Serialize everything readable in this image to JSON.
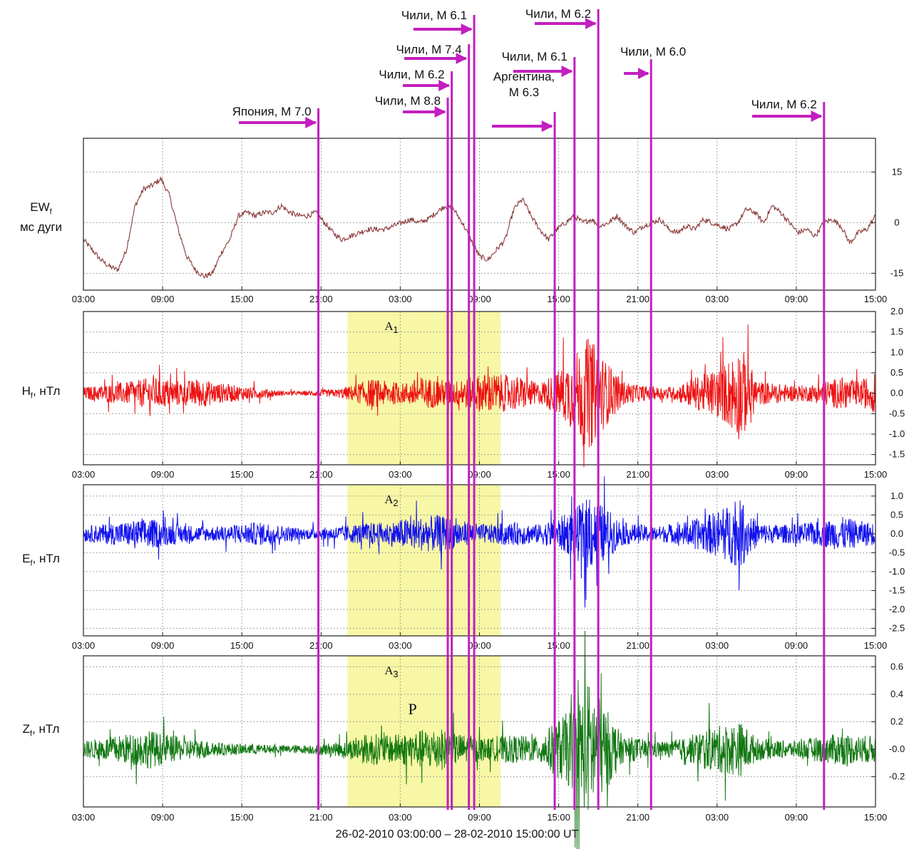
{
  "chart_data": {
    "type": "line",
    "caption": "26-02-2010 03:00:00 – 28-02-2010 15:00:00 UT",
    "x_tick_labels": [
      "03:00",
      "09:00",
      "15:00",
      "21:00",
      "03:00",
      "09:00",
      "15:00",
      "21:00",
      "03:00",
      "09:00",
      "15:00"
    ],
    "x_range_hours": [
      0,
      60
    ],
    "events": [
      {
        "label": "Япония, M 7.0",
        "t_hours": 17.8
      },
      {
        "label": "Чили, M 8.8",
        "t_hours": 27.6
      },
      {
        "label": "Чили, M 6.2",
        "t_hours": 27.9
      },
      {
        "label": "Чили, M 7.4",
        "t_hours": 29.2
      },
      {
        "label": "Чили, M 6.1",
        "t_hours": 29.6
      },
      {
        "label": "Аргентина,\nM 6.3",
        "t_hours": 35.7
      },
      {
        "label": "Чили, M 6.1",
        "t_hours": 37.2
      },
      {
        "label": "Чили, M 6.2",
        "t_hours": 39.0
      },
      {
        "label": "Чили, M 6.0",
        "t_hours": 43.0
      },
      {
        "label": "Чили, M 6.2",
        "t_hours": 56.1
      }
    ],
    "highlight_hours": [
      20,
      31.6
    ],
    "panels": [
      {
        "name": "EW",
        "sub": "f",
        "unit": "мс дуги",
        "ylim": [
          -20,
          25
        ],
        "y_ticks": [
          15,
          0,
          -15
        ],
        "y_tick_labels": [
          "15",
          "0",
          "-15"
        ],
        "region_label": "",
        "region_sub": "",
        "values": [
          -5,
          -8,
          -11,
          -13,
          -14,
          -8,
          5,
          10,
          11,
          13,
          8,
          -2,
          -10,
          -14,
          -16,
          -15,
          -9,
          -5,
          2,
          3,
          2,
          3,
          3,
          5,
          3,
          2,
          2,
          3,
          0,
          -3,
          -5,
          -4,
          -3,
          -2,
          -2,
          -2,
          -1,
          0,
          1,
          0,
          1,
          3,
          5,
          4,
          0,
          -5,
          -10,
          -11,
          -8,
          -5,
          4,
          7,
          2,
          -2,
          -5,
          -2,
          0,
          2,
          0,
          1,
          -1,
          0,
          2,
          -1,
          -3,
          -1,
          0,
          1,
          -2,
          -3,
          -1,
          -2,
          1,
          0,
          -1,
          -2,
          0,
          4,
          3,
          0,
          5,
          3,
          0,
          -3,
          -2,
          -4,
          0,
          1,
          -1,
          -6,
          -3,
          -2,
          2
        ]
      },
      {
        "name": "H",
        "sub": "f",
        "unit": ", нТл",
        "ylim": [
          -1.75,
          2.0
        ],
        "y_ticks": [
          2.0,
          1.5,
          1.0,
          0.5,
          0.0,
          -0.5,
          -1.0,
          -1.5
        ],
        "y_tick_labels": [
          "2.0",
          "1.5",
          "1.0",
          "0.5",
          "0.0",
          "-0.5",
          "-1.0",
          "-1.5"
        ],
        "region_label": "A",
        "region_sub": "1",
        "envelope": [
          0.15,
          0.2,
          0.25,
          0.3,
          0.4,
          0.35,
          0.3,
          0.35,
          0.25,
          0.2,
          0.15,
          0.1,
          0.05,
          0.05,
          0.08,
          0.1,
          0.2,
          0.35,
          0.3,
          0.25,
          0.4,
          0.35,
          0.3,
          0.4,
          0.5,
          0.45,
          0.4,
          0.25,
          0.5,
          0.9,
          1.4,
          0.8,
          0.3,
          0.2,
          0.15,
          0.15,
          0.35,
          0.5,
          0.7,
          1.2,
          0.3,
          0.25,
          0.2,
          0.2,
          0.3,
          0.4,
          0.3,
          0.5
        ],
        "color": "#ee1111"
      },
      {
        "name": "E",
        "sub": "f",
        "unit": ", нТл",
        "ylim": [
          -2.7,
          1.3
        ],
        "y_ticks": [
          1.0,
          0.5,
          0.0,
          -0.5,
          -1.0,
          -1.5,
          -2.0,
          -2.5
        ],
        "y_tick_labels": [
          "1.0",
          "0.5",
          "0.0",
          "-0.5",
          "-1.0",
          "-1.5",
          "-2.0",
          "-2.5"
        ],
        "region_label": "A",
        "region_sub": "2",
        "envelope": [
          0.2,
          0.25,
          0.3,
          0.35,
          0.4,
          0.3,
          0.25,
          0.2,
          0.2,
          0.25,
          0.3,
          0.3,
          0.2,
          0.15,
          0.15,
          0.2,
          0.25,
          0.3,
          0.3,
          0.4,
          0.45,
          0.5,
          0.4,
          0.3,
          0.25,
          0.3,
          0.3,
          0.25,
          0.4,
          0.6,
          1.0,
          0.7,
          0.3,
          0.25,
          0.2,
          0.25,
          0.35,
          0.5,
          0.7,
          0.9,
          0.3,
          0.25,
          0.25,
          0.3,
          0.35,
          0.45,
          0.35,
          0.3
        ],
        "color": "#1111ee"
      },
      {
        "name": "Z",
        "sub": "f",
        "unit": ", нТл",
        "ylim": [
          -0.42,
          0.68
        ],
        "y_ticks": [
          0.6,
          0.4,
          0.2,
          0.0,
          -0.2
        ],
        "y_tick_labels": [
          "0.6",
          "0.4",
          "0.2",
          "-0.0",
          "-0.2"
        ],
        "region_label": "A",
        "region_sub": "3",
        "extra_label": "P",
        "envelope": [
          0.06,
          0.08,
          0.1,
          0.12,
          0.14,
          0.1,
          0.08,
          0.07,
          0.05,
          0.04,
          0.04,
          0.03,
          0.03,
          0.03,
          0.04,
          0.05,
          0.08,
          0.12,
          0.1,
          0.12,
          0.14,
          0.16,
          0.12,
          0.1,
          0.08,
          0.1,
          0.1,
          0.09,
          0.2,
          0.3,
          0.5,
          0.3,
          0.1,
          0.08,
          0.06,
          0.06,
          0.1,
          0.15,
          0.18,
          0.2,
          0.08,
          0.07,
          0.06,
          0.08,
          0.1,
          0.12,
          0.1,
          0.1
        ],
        "color": "#117711"
      }
    ]
  }
}
